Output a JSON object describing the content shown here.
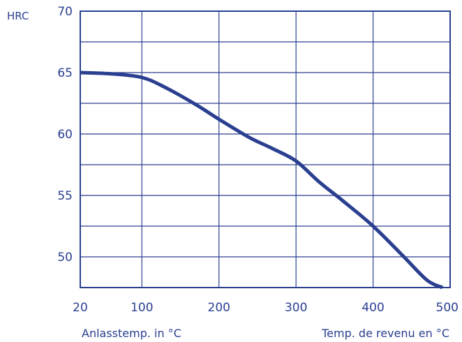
{
  "colors": {
    "line": "#2a3f8f",
    "grid": "#2a3f8f",
    "text": "#2a3f8f",
    "background": "#ffffff"
  },
  "chart_data": {
    "type": "line",
    "title": "",
    "ylabel": "HRC",
    "xlabel_left": "Anlasstemp. in °C",
    "xlabel_right": "Temp. de revenu en °C",
    "xlim": [
      20,
      500
    ],
    "ylim": [
      47.5,
      70
    ],
    "x_ticks": [
      20,
      100,
      200,
      300,
      400,
      500
    ],
    "x_tick_labels": [
      "20",
      "100",
      "200",
      "300",
      "400",
      "500"
    ],
    "y_ticks": [
      50,
      55,
      60,
      65,
      70
    ],
    "y_tick_labels": [
      "50",
      "55",
      "60",
      "65",
      "70"
    ],
    "grid": true,
    "grid_y_minor_step": 2.5,
    "legend": "none",
    "series": [
      {
        "x": [
          20,
          60,
          100,
          130,
          170,
          200,
          240,
          270,
          300,
          330,
          360,
          400,
          440,
          470,
          490
        ],
        "y": [
          65.0,
          64.9,
          64.6,
          63.8,
          62.4,
          61.2,
          59.7,
          58.8,
          57.8,
          56.1,
          54.6,
          52.5,
          50.0,
          48.1,
          47.5
        ]
      }
    ]
  }
}
